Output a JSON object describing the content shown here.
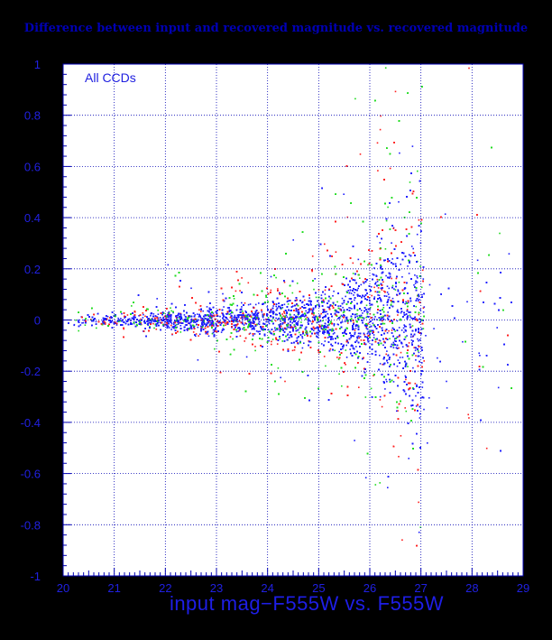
{
  "chart_data": {
    "type": "scatter",
    "title": "Difference between input and recovered magnitude vs. recovered magnitude",
    "xlabel": "input mag−F555W vs. F555W",
    "ylabel": "",
    "annotation": "All CCDs",
    "xlim": [
      20,
      29
    ],
    "ylim": [
      -1,
      1
    ],
    "xticks": [
      "20",
      "21",
      "22",
      "23",
      "24",
      "25",
      "26",
      "27",
      "28",
      "29"
    ],
    "yticks": [
      "-1",
      "-0.8",
      "-0.6",
      "-0.4",
      "-0.2",
      "0",
      "0.2",
      "0.4",
      "0.6",
      "0.8",
      "1"
    ],
    "grid": true,
    "series_colors": [
      "#1e1eff",
      "#ff1e1e",
      "#1edc1e"
    ],
    "background": "#ffffff",
    "grid_color": "#0000b4",
    "density_envelope": {
      "magnitude": [
        20,
        21,
        22,
        23,
        24,
        25,
        25.5,
        26,
        26.5,
        27
      ],
      "typical_scatter": [
        0.015,
        0.02,
        0.03,
        0.045,
        0.06,
        0.09,
        0.12,
        0.17,
        0.24,
        0.3
      ],
      "dense_upper": [
        0.02,
        0.025,
        0.03,
        0.04,
        0.07,
        0.12,
        0.2,
        0.3,
        0.42,
        0.45
      ],
      "dense_lower": [
        -0.02,
        -0.025,
        -0.03,
        -0.05,
        -0.08,
        -0.1,
        -0.2,
        -0.3,
        -0.4,
        -0.45
      ],
      "faint_cutoff": 27.05
    }
  }
}
